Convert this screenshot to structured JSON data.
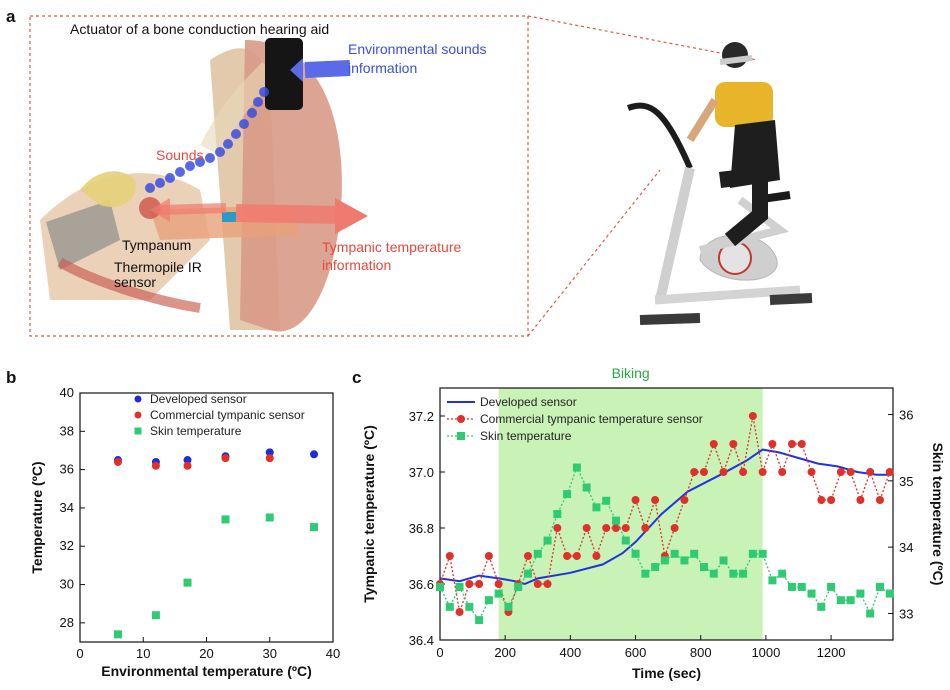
{
  "panel_a": {
    "letter": "a",
    "actuator_label": "Actuator of a bone conduction hearing aid",
    "env_label_1": "Environmental sounds",
    "env_label_2": "information",
    "sounds_label": "Sounds",
    "tympanum_label": "Tympanum",
    "thermopile_label_1": "Thermopile IR",
    "thermopile_label_2": "sensor",
    "tympanic_label_1": "Tympanic temperature",
    "tympanic_label_2": "information",
    "colors": {
      "red": "#e8483c",
      "blue": "#3a4fe0",
      "dotted": "#e0584a"
    },
    "icons": [
      "ear-anatomy-illustration",
      "person-on-exercise-bike-photo"
    ]
  },
  "chart_data": [
    {
      "panel": "b",
      "type": "scatter",
      "xlabel": "Environmental temperature (ºC)",
      "ylabel": "Temperature (ºC)",
      "xlim": [
        0,
        40
      ],
      "ylim": [
        27,
        40
      ],
      "xticks": [
        "0",
        "10",
        "20",
        "30",
        "40"
      ],
      "yticks": [
        "28",
        "30",
        "32",
        "34",
        "36",
        "38",
        "40"
      ],
      "legend_position": "top-right",
      "series": [
        {
          "name": "Developed sensor",
          "marker": "circle",
          "color": "#1f2bdc",
          "x": [
            6,
            12,
            17,
            23,
            30,
            37
          ],
          "y": [
            36.5,
            36.4,
            36.5,
            36.7,
            36.9,
            36.8
          ]
        },
        {
          "name": "Commercial tympanic sensor",
          "marker": "circle",
          "color": "#e0302a",
          "x": [
            6,
            12,
            17,
            23,
            30
          ],
          "y": [
            36.4,
            36.2,
            36.2,
            36.6,
            36.6
          ]
        },
        {
          "name": "Skin temperature",
          "marker": "square",
          "color": "#2ecb72",
          "x": [
            6,
            12,
            17,
            23,
            30,
            37
          ],
          "y": [
            27.4,
            28.4,
            30.1,
            33.4,
            33.5,
            33.0
          ]
        }
      ]
    },
    {
      "panel": "c",
      "type": "line",
      "title": "Biking",
      "highlight": {
        "x": [
          180,
          990
        ],
        "color": "#c9f2b6"
      },
      "xlabel": "Time (sec)",
      "ylabel": "Tympanic temperature (ºC)",
      "y2label": "Skin temperature (ºC)",
      "xlim": [
        0,
        1390
      ],
      "ylim": [
        36.4,
        37.3
      ],
      "y2lim": [
        32.6,
        36.4
      ],
      "xticks": [
        "0",
        "200",
        "400",
        "600",
        "800",
        "1000",
        "1200"
      ],
      "yticks": [
        "36.4",
        "36.6",
        "36.8",
        "37.0",
        "37.2"
      ],
      "y2ticks": [
        "33",
        "34",
        "35",
        "36"
      ],
      "legend_position": "top-left",
      "series": [
        {
          "name": "Developed sensor",
          "axis": "left",
          "style": "line",
          "color": "#2233dd",
          "x": [
            0,
            60,
            120,
            180,
            230,
            260,
            300,
            400,
            500,
            560,
            600,
            680,
            760,
            860,
            940,
            990,
            1040,
            1100,
            1160,
            1220,
            1280,
            1340,
            1380
          ],
          "y": [
            36.62,
            36.61,
            36.63,
            36.62,
            36.61,
            36.6,
            36.62,
            36.64,
            36.67,
            36.71,
            36.75,
            36.85,
            36.93,
            36.99,
            37.04,
            37.08,
            37.07,
            37.05,
            37.03,
            37.02,
            37.0,
            36.99,
            36.99
          ]
        },
        {
          "name": "Commercial tympanic temperature sensor",
          "axis": "left",
          "style": "dotted-circles",
          "color": "#e0302a",
          "x": [
            0,
            30,
            60,
            90,
            120,
            150,
            180,
            210,
            240,
            270,
            300,
            330,
            360,
            390,
            420,
            450,
            480,
            510,
            540,
            570,
            600,
            630,
            660,
            690,
            720,
            750,
            780,
            810,
            840,
            870,
            900,
            930,
            960,
            990,
            1020,
            1050,
            1080,
            1110,
            1140,
            1170,
            1200,
            1230,
            1260,
            1290,
            1320,
            1350,
            1380
          ],
          "y": [
            36.6,
            36.7,
            36.5,
            36.6,
            36.6,
            36.7,
            36.6,
            36.5,
            36.6,
            36.7,
            36.6,
            36.6,
            36.8,
            36.7,
            36.7,
            36.8,
            36.7,
            36.8,
            36.8,
            36.8,
            36.9,
            36.8,
            36.9,
            36.7,
            36.8,
            36.9,
            37.0,
            37.0,
            37.1,
            37.0,
            37.1,
            37.0,
            37.2,
            37.0,
            37.1,
            37.0,
            37.1,
            37.1,
            37.0,
            36.9,
            36.9,
            37.0,
            37.0,
            36.9,
            37.0,
            36.9,
            37.0
          ]
        },
        {
          "name": "Skin temperature",
          "axis": "right",
          "style": "dotted-squares",
          "color": "#2ecb72",
          "x": [
            0,
            30,
            60,
            90,
            120,
            150,
            180,
            210,
            240,
            270,
            300,
            330,
            360,
            390,
            420,
            450,
            480,
            510,
            540,
            570,
            600,
            630,
            660,
            690,
            720,
            750,
            780,
            810,
            840,
            870,
            900,
            930,
            960,
            990,
            1020,
            1050,
            1080,
            1110,
            1140,
            1170,
            1200,
            1230,
            1260,
            1290,
            1320,
            1350,
            1380
          ],
          "y": [
            33.4,
            33.1,
            33.4,
            33.1,
            32.9,
            33.2,
            33.3,
            33.1,
            33.4,
            33.6,
            33.9,
            34.1,
            34.5,
            34.8,
            35.2,
            34.9,
            34.6,
            34.7,
            34.4,
            34.1,
            33.9,
            33.6,
            33.7,
            33.8,
            33.9,
            33.8,
            33.9,
            33.7,
            33.6,
            33.8,
            33.6,
            33.6,
            33.9,
            33.9,
            33.5,
            33.6,
            33.4,
            33.4,
            33.3,
            33.1,
            33.4,
            33.2,
            33.2,
            33.3,
            33.0,
            33.4,
            33.3
          ]
        }
      ]
    }
  ]
}
